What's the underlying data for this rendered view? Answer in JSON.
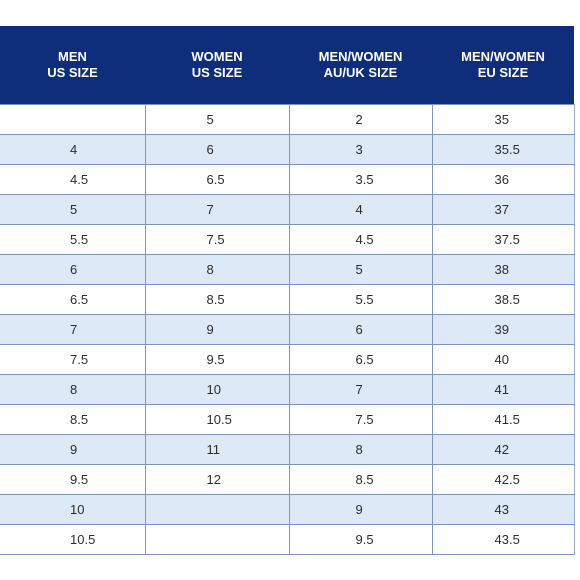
{
  "headers": [
    [
      "MEN",
      "US SIZE"
    ],
    [
      "WOMEN",
      "US SIZE"
    ],
    [
      "MEN/WOMEN",
      "AU/UK SIZE"
    ],
    [
      "MEN/WOMEN",
      "EU SIZE"
    ]
  ],
  "rows": [
    [
      "",
      "5",
      "2",
      "35"
    ],
    [
      "4",
      "6",
      "3",
      "35.5"
    ],
    [
      "4.5",
      "6.5",
      "3.5",
      "36"
    ],
    [
      "5",
      "7",
      "4",
      "37"
    ],
    [
      "5.5",
      "7.5",
      "4.5",
      "37.5"
    ],
    [
      "6",
      "8",
      "5",
      "38"
    ],
    [
      "6.5",
      "8.5",
      "5.5",
      "38.5"
    ],
    [
      "7",
      "9",
      "6",
      "39"
    ],
    [
      "7.5",
      "9.5",
      "6.5",
      "40"
    ],
    [
      "8",
      "10",
      "7",
      "41"
    ],
    [
      "8.5",
      "10.5",
      "7.5",
      "41.5"
    ],
    [
      "9",
      "11",
      "8",
      "42"
    ],
    [
      "9.5",
      "12",
      "8.5",
      "42.5"
    ],
    [
      "10",
      "",
      "9",
      "43"
    ],
    [
      "10.5",
      "",
      "9.5",
      "43.5"
    ]
  ],
  "colors": {
    "header_background": "#0e2e7c",
    "header_text": "#ffffff",
    "row_stripe": "#dde9f6",
    "grid_line": "#7d95bf"
  }
}
